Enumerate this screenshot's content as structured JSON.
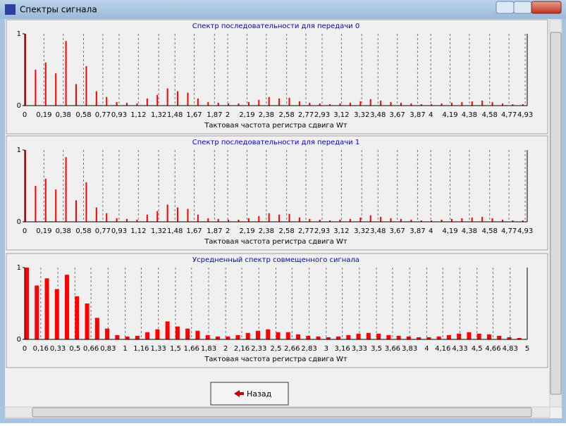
{
  "window": {
    "title": "Спектры сигнала"
  },
  "button": {
    "label": "Назад"
  },
  "chart_data": [
    {
      "type": "bar",
      "title": "Спектр  последовательности для передачи 0",
      "xlabel": "Тактовая частота регистра сдвига Wт",
      "color": "#ff0000",
      "grid": true,
      "x": [
        0,
        0.1,
        0.2,
        0.3,
        0.4,
        0.5,
        0.6,
        0.7,
        0.8,
        0.9,
        1,
        1.1,
        1.2,
        1.3,
        1.4,
        1.5,
        1.6,
        1.7,
        1.8,
        1.9,
        2,
        2.1,
        2.2,
        2.3,
        2.4,
        2.5,
        2.6,
        2.7,
        2.8,
        2.9,
        3,
        3.1,
        3.2,
        3.3,
        3.4,
        3.5,
        3.6,
        3.7,
        3.8,
        3.9,
        4,
        4.1,
        4.2,
        4.3,
        4.4,
        4.5,
        4.6,
        4.7,
        4.8,
        4.9
      ],
      "values": [
        1,
        0.5,
        0.6,
        0.45,
        0.9,
        0.3,
        0.55,
        0.2,
        0.12,
        0.05,
        0.04,
        0.03,
        0.1,
        0.15,
        0.24,
        0.2,
        0.18,
        0.1,
        0.05,
        0.04,
        0.03,
        0.03,
        0.05,
        0.08,
        0.12,
        0.1,
        0.11,
        0.06,
        0.04,
        0.03,
        0.02,
        0.03,
        0.04,
        0.06,
        0.09,
        0.07,
        0.05,
        0.04,
        0.03,
        0.02,
        0.02,
        0.03,
        0.04,
        0.05,
        0.06,
        0.07,
        0.05,
        0.03,
        0.02,
        0.02
      ],
      "xlim": [
        0,
        4.95
      ],
      "ylim": [
        0,
        1
      ],
      "yticks": [
        0,
        1
      ],
      "xticks": [
        0,
        {
          "value": 0.19,
          "label": "0,19"
        },
        {
          "value": 0.38,
          "label": "0,38"
        },
        {
          "value": 0.58,
          "label": "0,58"
        },
        {
          "value": 0.77,
          "label": "0,77"
        },
        {
          "value": 0.93,
          "label": "0,93"
        },
        {
          "value": 1.12,
          "label": "1,12"
        },
        {
          "value": 1.32,
          "label": "1,32"
        },
        {
          "value": 1.48,
          "label": "1,48"
        },
        {
          "value": 1.67,
          "label": "1,67"
        },
        {
          "value": 1.87,
          "label": "1,87"
        },
        2,
        {
          "value": 2.19,
          "label": "2,19"
        },
        {
          "value": 2.38,
          "label": "2,38"
        },
        {
          "value": 2.58,
          "label": "2,58"
        },
        {
          "value": 2.77,
          "label": "2,77"
        },
        {
          "value": 2.93,
          "label": "2,93"
        },
        {
          "value": 3.12,
          "label": "3,12"
        },
        {
          "value": 3.32,
          "label": "3,32"
        },
        {
          "value": 3.48,
          "label": "3,48"
        },
        {
          "value": 3.67,
          "label": "3,67"
        },
        {
          "value": 3.87,
          "label": "3,87"
        },
        4,
        {
          "value": 4.19,
          "label": "4,19"
        },
        {
          "value": 4.38,
          "label": "4,38"
        },
        {
          "value": 4.58,
          "label": "4,58"
        },
        {
          "value": 4.77,
          "label": "4,77"
        },
        {
          "value": 4.93,
          "label": "4,93"
        }
      ]
    },
    {
      "type": "bar",
      "title": "Спектр последовательности для передачи 1",
      "xlabel": "Тактовая частота регистра сдвига Wт",
      "color": "#ff0000",
      "grid": true,
      "x": [
        0,
        0.1,
        0.2,
        0.3,
        0.4,
        0.5,
        0.6,
        0.7,
        0.8,
        0.9,
        1,
        1.1,
        1.2,
        1.3,
        1.4,
        1.5,
        1.6,
        1.7,
        1.8,
        1.9,
        2,
        2.1,
        2.2,
        2.3,
        2.4,
        2.5,
        2.6,
        2.7,
        2.8,
        2.9,
        3,
        3.1,
        3.2,
        3.3,
        3.4,
        3.5,
        3.6,
        3.7,
        3.8,
        3.9,
        4,
        4.1,
        4.2,
        4.3,
        4.4,
        4.5,
        4.6,
        4.7,
        4.8,
        4.9
      ],
      "values": [
        1,
        0.5,
        0.6,
        0.45,
        0.9,
        0.3,
        0.55,
        0.2,
        0.12,
        0.05,
        0.04,
        0.03,
        0.1,
        0.15,
        0.24,
        0.2,
        0.18,
        0.1,
        0.05,
        0.04,
        0.03,
        0.03,
        0.05,
        0.08,
        0.12,
        0.1,
        0.11,
        0.06,
        0.04,
        0.03,
        0.02,
        0.03,
        0.04,
        0.06,
        0.09,
        0.07,
        0.05,
        0.04,
        0.03,
        0.02,
        0.02,
        0.03,
        0.04,
        0.05,
        0.06,
        0.07,
        0.05,
        0.03,
        0.02,
        0.02
      ],
      "xlim": [
        0,
        4.95
      ],
      "ylim": [
        0,
        1
      ],
      "yticks": [
        0,
        1
      ],
      "xticks": [
        0,
        {
          "value": 0.19,
          "label": "0,19"
        },
        {
          "value": 0.38,
          "label": "0,38"
        },
        {
          "value": 0.58,
          "label": "0,58"
        },
        {
          "value": 0.77,
          "label": "0,77"
        },
        {
          "value": 0.93,
          "label": "0,93"
        },
        {
          "value": 1.12,
          "label": "1,12"
        },
        {
          "value": 1.32,
          "label": "1,32"
        },
        {
          "value": 1.48,
          "label": "1,48"
        },
        {
          "value": 1.67,
          "label": "1,67"
        },
        {
          "value": 1.87,
          "label": "1,87"
        },
        2,
        {
          "value": 2.19,
          "label": "2,19"
        },
        {
          "value": 2.38,
          "label": "2,38"
        },
        {
          "value": 2.58,
          "label": "2,58"
        },
        {
          "value": 2.77,
          "label": "2,77"
        },
        {
          "value": 2.93,
          "label": "2,93"
        },
        {
          "value": 3.12,
          "label": "3,12"
        },
        {
          "value": 3.32,
          "label": "3,32"
        },
        {
          "value": 3.48,
          "label": "3,48"
        },
        {
          "value": 3.67,
          "label": "3,67"
        },
        {
          "value": 3.87,
          "label": "3,87"
        },
        4,
        {
          "value": 4.19,
          "label": "4,19"
        },
        {
          "value": 4.38,
          "label": "4,38"
        },
        {
          "value": 4.58,
          "label": "4,58"
        },
        {
          "value": 4.77,
          "label": "4,77"
        },
        {
          "value": 4.93,
          "label": "4,93"
        }
      ]
    },
    {
      "type": "bar",
      "title": "Усредненный спектр совмещенного сигнала",
      "xlabel": "Тактовая частота регистра сдвига Wт",
      "color": "#ff0000",
      "grid": true,
      "x": [
        0,
        0.1,
        0.2,
        0.3,
        0.4,
        0.5,
        0.6,
        0.7,
        0.8,
        0.9,
        1,
        1.1,
        1.2,
        1.3,
        1.4,
        1.5,
        1.6,
        1.7,
        1.8,
        1.9,
        2,
        2.1,
        2.2,
        2.3,
        2.4,
        2.5,
        2.6,
        2.7,
        2.8,
        2.9,
        3,
        3.1,
        3.2,
        3.3,
        3.4,
        3.5,
        3.6,
        3.7,
        3.8,
        3.9,
        4,
        4.1,
        4.2,
        4.3,
        4.4,
        4.5,
        4.6,
        4.7,
        4.8,
        4.9
      ],
      "values": [
        1,
        0.75,
        0.85,
        0.7,
        0.9,
        0.6,
        0.5,
        0.3,
        0.15,
        0.06,
        0.04,
        0.05,
        0.1,
        0.14,
        0.25,
        0.18,
        0.15,
        0.12,
        0.06,
        0.04,
        0.04,
        0.06,
        0.09,
        0.12,
        0.14,
        0.1,
        0.1,
        0.07,
        0.05,
        0.04,
        0.03,
        0.04,
        0.06,
        0.08,
        0.09,
        0.08,
        0.06,
        0.05,
        0.04,
        0.03,
        0.03,
        0.04,
        0.06,
        0.08,
        0.1,
        0.08,
        0.07,
        0.05,
        0.03,
        0.02
      ],
      "xlim": [
        0,
        5
      ],
      "ylim": [
        0,
        1
      ],
      "yticks": [
        0,
        1
      ],
      "xticks": [
        0,
        {
          "value": 0.16,
          "label": "0,16"
        },
        {
          "value": 0.33,
          "label": "0,33"
        },
        {
          "value": 0.5,
          "label": "0,5"
        },
        {
          "value": 0.66,
          "label": "0,66"
        },
        {
          "value": 0.83,
          "label": "0,83"
        },
        1,
        {
          "value": 1.16,
          "label": "1,16"
        },
        {
          "value": 1.33,
          "label": "1,33"
        },
        {
          "value": 1.5,
          "label": "1,5"
        },
        {
          "value": 1.66,
          "label": "1,66"
        },
        {
          "value": 1.83,
          "label": "1,83"
        },
        2,
        {
          "value": 2.16,
          "label": "2,16"
        },
        {
          "value": 2.33,
          "label": "2,33"
        },
        {
          "value": 2.5,
          "label": "2,5"
        },
        {
          "value": 2.66,
          "label": "2,66"
        },
        {
          "value": 2.83,
          "label": "2,83"
        },
        3,
        {
          "value": 3.16,
          "label": "3,16"
        },
        {
          "value": 3.33,
          "label": "3,33"
        },
        {
          "value": 3.5,
          "label": "3,5"
        },
        {
          "value": 3.66,
          "label": "3,66"
        },
        {
          "value": 3.83,
          "label": "3,83"
        },
        4,
        {
          "value": 4.16,
          "label": "4,16"
        },
        {
          "value": 4.33,
          "label": "4,33"
        },
        {
          "value": 4.5,
          "label": "4,5"
        },
        {
          "value": 4.66,
          "label": "4,66"
        },
        {
          "value": 4.83,
          "label": "4,83"
        },
        5
      ]
    }
  ]
}
